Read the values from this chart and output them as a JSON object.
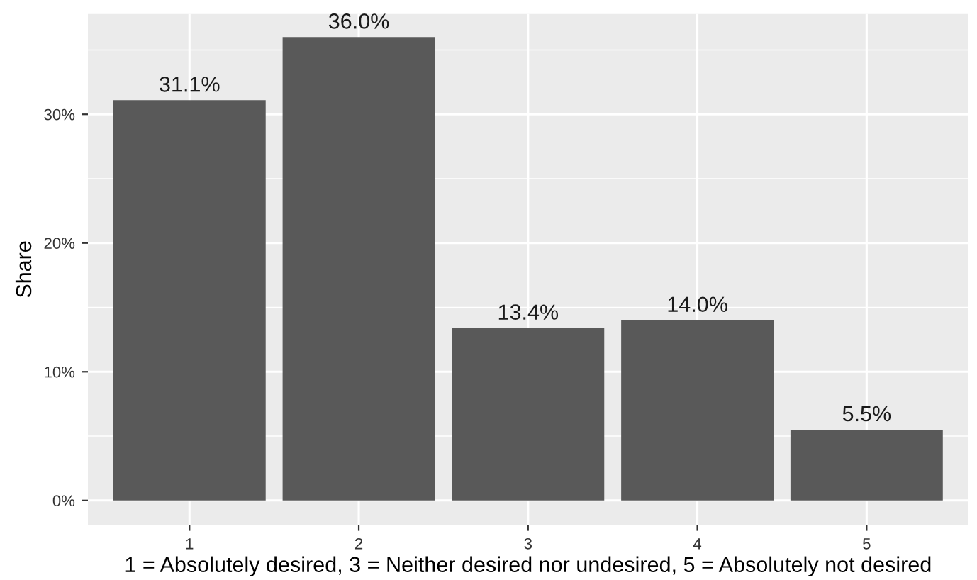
{
  "chart_data": {
    "type": "bar",
    "xlabel": "1 = Absolutely desired, 3 = Neither desired nor undesired, 5 = Absolutely not desired",
    "ylabel": "Share",
    "categories": [
      "1",
      "2",
      "3",
      "4",
      "5"
    ],
    "values": [
      31.1,
      36.0,
      13.4,
      14.0,
      5.5
    ],
    "value_labels": [
      "31.1%",
      "36.0%",
      "13.4%",
      "14.0%",
      "5.5%"
    ],
    "color": "#595959",
    "ylim": [
      -1.9,
      37.8
    ],
    "yticks": [
      {
        "value": 0,
        "label": "0%"
      },
      {
        "value": 10,
        "label": "10%"
      },
      {
        "value": 20,
        "label": "20%"
      },
      {
        "value": 30,
        "label": "30%"
      }
    ],
    "grid": true
  }
}
